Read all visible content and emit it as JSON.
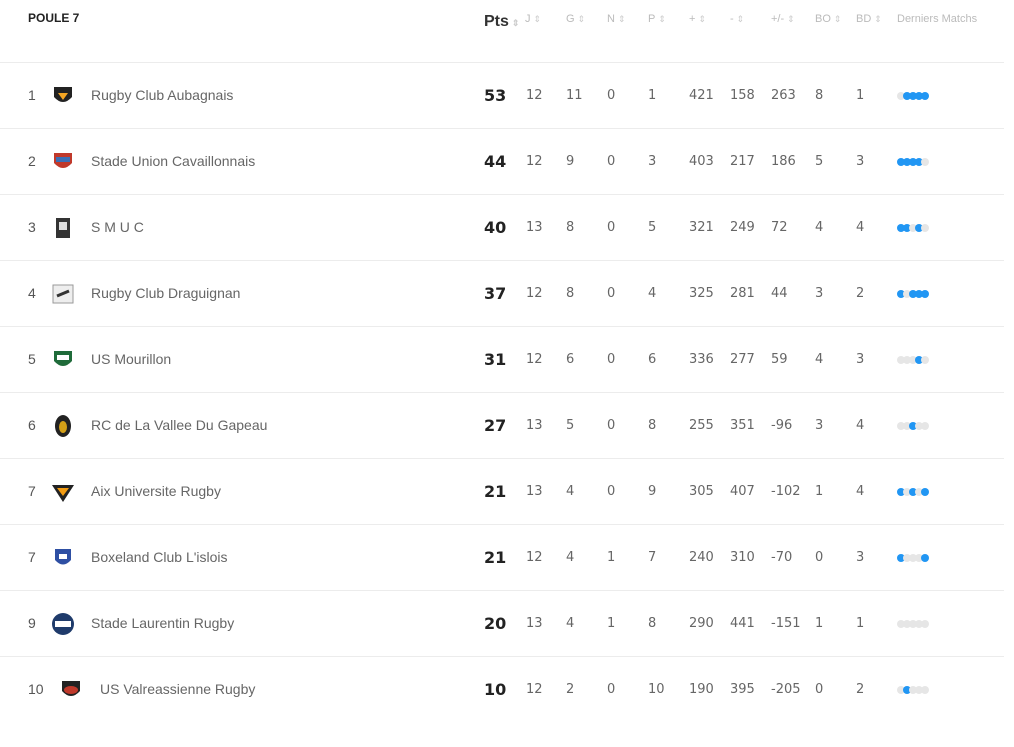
{
  "title": "POULE 7",
  "columns": {
    "pts": "Pts",
    "j": "J",
    "g": "G",
    "n": "N",
    "p": "P",
    "plus": "+",
    "minus": "-",
    "diff": "+/-",
    "bo": "BO",
    "bd": "BD",
    "form": "Derniers Matchs"
  },
  "sort_glyph": "⇕",
  "colors": {
    "win": "#2196f3",
    "other": "#e6e6e6"
  },
  "rows": [
    {
      "rank": "1",
      "team": "Rugby Club Aubagnais",
      "pts": "53",
      "j": "12",
      "g": "11",
      "n": "0",
      "p": "1",
      "plus": "421",
      "minus": "158",
      "diff": "263",
      "bo": "8",
      "bd": "1",
      "form": [
        "L",
        "W",
        "W",
        "W",
        "W"
      ],
      "logo": "aubagne-logo"
    },
    {
      "rank": "2",
      "team": "Stade Union Cavaillonnais",
      "pts": "44",
      "j": "12",
      "g": "9",
      "n": "0",
      "p": "3",
      "plus": "403",
      "minus": "217",
      "diff": "186",
      "bo": "5",
      "bd": "3",
      "form": [
        "W",
        "W",
        "W",
        "W",
        "L"
      ],
      "logo": "cavaillon-logo"
    },
    {
      "rank": "3",
      "team": "S M U C",
      "pts": "40",
      "j": "13",
      "g": "8",
      "n": "0",
      "p": "5",
      "plus": "321",
      "minus": "249",
      "diff": "72",
      "bo": "4",
      "bd": "4",
      "form": [
        "W",
        "W",
        "L",
        "W",
        "L"
      ],
      "logo": "smuc-logo"
    },
    {
      "rank": "4",
      "team": "Rugby Club Draguignan",
      "pts": "37",
      "j": "12",
      "g": "8",
      "n": "0",
      "p": "4",
      "plus": "325",
      "minus": "281",
      "diff": "44",
      "bo": "3",
      "bd": "2",
      "form": [
        "W",
        "L",
        "W",
        "W",
        "W"
      ],
      "logo": "draguignan-logo"
    },
    {
      "rank": "5",
      "team": "US Mourillon",
      "pts": "31",
      "j": "12",
      "g": "6",
      "n": "0",
      "p": "6",
      "plus": "336",
      "minus": "277",
      "diff": "59",
      "bo": "4",
      "bd": "3",
      "form": [
        "L",
        "L",
        "L",
        "W",
        "L"
      ],
      "logo": "mourillon-logo"
    },
    {
      "rank": "6",
      "team": "RC de La Vallee Du Gapeau",
      "pts": "27",
      "j": "13",
      "g": "5",
      "n": "0",
      "p": "8",
      "plus": "255",
      "minus": "351",
      "diff": "-96",
      "bo": "3",
      "bd": "4",
      "form": [
        "L",
        "L",
        "W",
        "L",
        "L"
      ],
      "logo": "gapeau-logo"
    },
    {
      "rank": "7",
      "team": "Aix Universite Rugby",
      "pts": "21",
      "j": "13",
      "g": "4",
      "n": "0",
      "p": "9",
      "plus": "305",
      "minus": "407",
      "diff": "-102",
      "bo": "1",
      "bd": "4",
      "form": [
        "W",
        "L",
        "W",
        "L",
        "W"
      ],
      "logo": "aix-logo"
    },
    {
      "rank": "7",
      "team": "Boxeland Club L'islois",
      "pts": "21",
      "j": "12",
      "g": "4",
      "n": "1",
      "p": "7",
      "plus": "240",
      "minus": "310",
      "diff": "-70",
      "bo": "0",
      "bd": "3",
      "form": [
        "W",
        "L",
        "L",
        "L",
        "W"
      ],
      "logo": "lislois-logo"
    },
    {
      "rank": "9",
      "team": "Stade Laurentin Rugby",
      "pts": "20",
      "j": "13",
      "g": "4",
      "n": "1",
      "p": "8",
      "plus": "290",
      "minus": "441",
      "diff": "-151",
      "bo": "1",
      "bd": "1",
      "form": [
        "L",
        "L",
        "L",
        "L",
        "L"
      ],
      "logo": "slr-logo"
    },
    {
      "rank": "10",
      "team": "US Valreassienne Rugby",
      "pts": "10",
      "j": "12",
      "g": "2",
      "n": "0",
      "p": "10",
      "plus": "190",
      "minus": "395",
      "diff": "-205",
      "bo": "0",
      "bd": "2",
      "form": [
        "L",
        "W",
        "L",
        "L",
        "L"
      ],
      "logo": "valreas-logo"
    }
  ]
}
